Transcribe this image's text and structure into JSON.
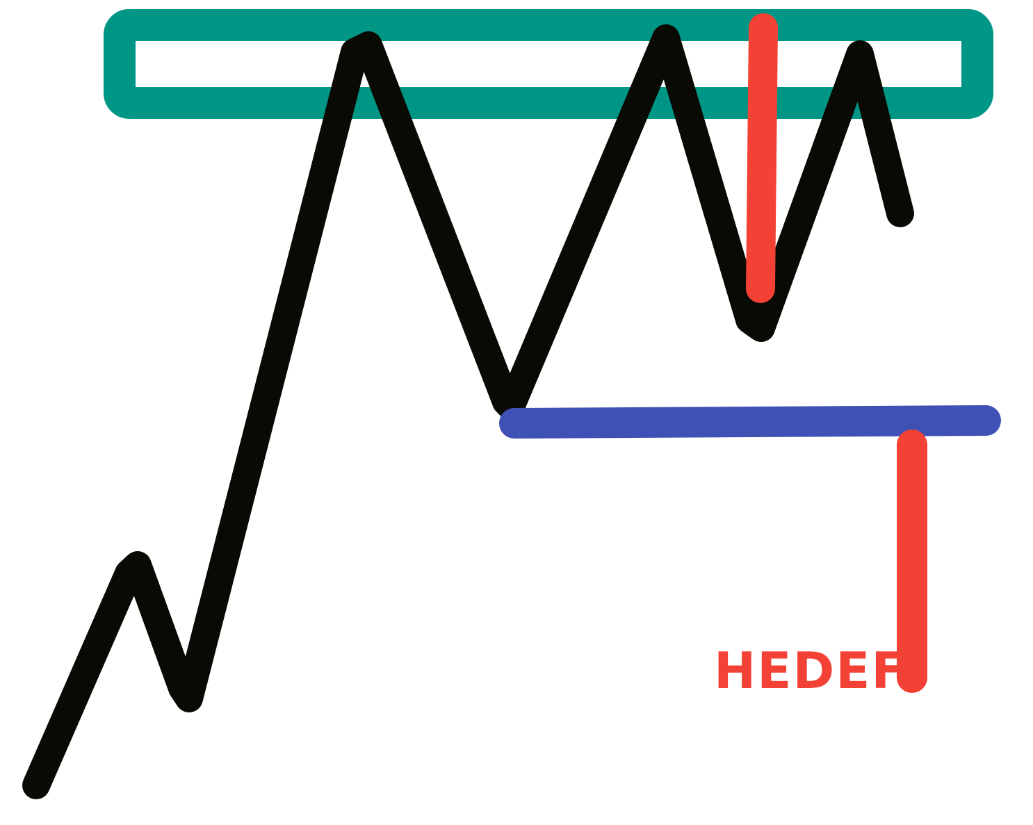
{
  "diagram": {
    "target_label": "HEDEF",
    "colors": {
      "background": "#ffffff",
      "zone": "#009686",
      "price_line": "#0a0a05",
      "measure": "#f34235",
      "neckline": "#3f51b5"
    }
  }
}
